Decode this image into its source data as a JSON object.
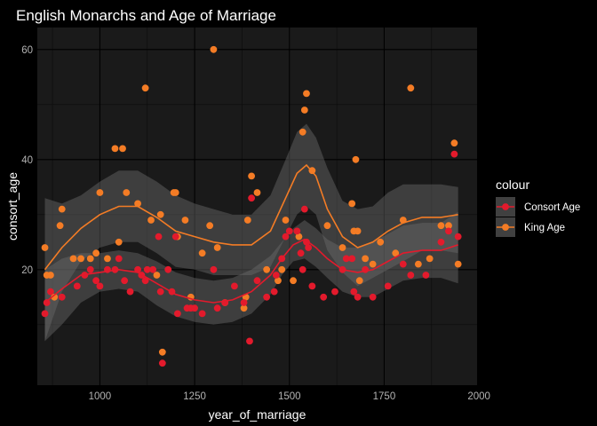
{
  "chart_data": {
    "type": "scatter",
    "title": "English Monarchs and Age of Marriage",
    "xlabel": "year_of_marriage",
    "ylabel": "consort_age",
    "xlim": [
      835,
      1995
    ],
    "ylim": [
      -1,
      64
    ],
    "x_ticks": [
      1000,
      1250,
      1500,
      1750,
      2000
    ],
    "y_ticks": [
      20,
      40,
      60
    ],
    "grid": true,
    "legend": {
      "title": "colour",
      "position": "right"
    },
    "series": [
      {
        "name": "Consort Age",
        "color": "#e31a2c",
        "points": [
          [
            855,
            12
          ],
          [
            860,
            14
          ],
          [
            870,
            16
          ],
          [
            900,
            15
          ],
          [
            940,
            17
          ],
          [
            960,
            19
          ],
          [
            975,
            20
          ],
          [
            990,
            18
          ],
          [
            1000,
            17
          ],
          [
            1020,
            20
          ],
          [
            1040,
            20
          ],
          [
            1050,
            22
          ],
          [
            1065,
            18
          ],
          [
            1080,
            16
          ],
          [
            1100,
            20
          ],
          [
            1110,
            19
          ],
          [
            1120,
            18
          ],
          [
            1125,
            20
          ],
          [
            1140,
            20
          ],
          [
            1155,
            26
          ],
          [
            1160,
            16
          ],
          [
            1165,
            3
          ],
          [
            1180,
            20
          ],
          [
            1190,
            16
          ],
          [
            1200,
            26
          ],
          [
            1205,
            12
          ],
          [
            1230,
            13
          ],
          [
            1240,
            13
          ],
          [
            1250,
            13
          ],
          [
            1270,
            12
          ],
          [
            1300,
            20
          ],
          [
            1310,
            13
          ],
          [
            1330,
            14
          ],
          [
            1355,
            17
          ],
          [
            1380,
            14
          ],
          [
            1395,
            7
          ],
          [
            1400,
            33
          ],
          [
            1415,
            18
          ],
          [
            1440,
            15
          ],
          [
            1460,
            16
          ],
          [
            1465,
            19
          ],
          [
            1480,
            22
          ],
          [
            1490,
            26
          ],
          [
            1500,
            27
          ],
          [
            1520,
            27
          ],
          [
            1530,
            23
          ],
          [
            1535,
            20
          ],
          [
            1540,
            31
          ],
          [
            1545,
            25
          ],
          [
            1550,
            24
          ],
          [
            1560,
            17
          ],
          [
            1590,
            15
          ],
          [
            1620,
            16
          ],
          [
            1640,
            20
          ],
          [
            1650,
            22
          ],
          [
            1665,
            22
          ],
          [
            1670,
            16
          ],
          [
            1680,
            15
          ],
          [
            1700,
            20
          ],
          [
            1720,
            15
          ],
          [
            1760,
            17
          ],
          [
            1800,
            21
          ],
          [
            1820,
            19
          ],
          [
            1860,
            19
          ],
          [
            1900,
            25
          ],
          [
            1920,
            27
          ],
          [
            1935,
            41
          ],
          [
            1945,
            26
          ]
        ]
      },
      {
        "name": "King Age",
        "color": "#f47c25",
        "points": [
          [
            855,
            24
          ],
          [
            860,
            19
          ],
          [
            870,
            19
          ],
          [
            880,
            15
          ],
          [
            895,
            28
          ],
          [
            900,
            31
          ],
          [
            930,
            22
          ],
          [
            950,
            22
          ],
          [
            975,
            22
          ],
          [
            990,
            23
          ],
          [
            1000,
            34
          ],
          [
            1020,
            22
          ],
          [
            1040,
            42
          ],
          [
            1050,
            25
          ],
          [
            1060,
            42
          ],
          [
            1070,
            34
          ],
          [
            1100,
            32
          ],
          [
            1120,
            53
          ],
          [
            1135,
            29
          ],
          [
            1150,
            19
          ],
          [
            1160,
            30
          ],
          [
            1165,
            5
          ],
          [
            1195,
            34
          ],
          [
            1200,
            34
          ],
          [
            1205,
            26
          ],
          [
            1225,
            29
          ],
          [
            1240,
            15
          ],
          [
            1270,
            23
          ],
          [
            1290,
            28
          ],
          [
            1300,
            60
          ],
          [
            1310,
            24
          ],
          [
            1330,
            14
          ],
          [
            1380,
            13
          ],
          [
            1385,
            15
          ],
          [
            1390,
            29
          ],
          [
            1400,
            37
          ],
          [
            1415,
            34
          ],
          [
            1440,
            20
          ],
          [
            1470,
            18
          ],
          [
            1480,
            20
          ],
          [
            1490,
            29
          ],
          [
            1510,
            18
          ],
          [
            1525,
            26
          ],
          [
            1535,
            45
          ],
          [
            1540,
            49
          ],
          [
            1545,
            52
          ],
          [
            1560,
            38
          ],
          [
            1600,
            28
          ],
          [
            1640,
            24
          ],
          [
            1665,
            32
          ],
          [
            1670,
            27
          ],
          [
            1675,
            40
          ],
          [
            1680,
            27
          ],
          [
            1685,
            18
          ],
          [
            1700,
            22
          ],
          [
            1720,
            21
          ],
          [
            1740,
            25
          ],
          [
            1780,
            23
          ],
          [
            1800,
            29
          ],
          [
            1820,
            53
          ],
          [
            1840,
            21
          ],
          [
            1870,
            22
          ],
          [
            1900,
            28
          ],
          [
            1920,
            28
          ],
          [
            1935,
            43
          ],
          [
            1945,
            21
          ]
        ]
      }
    ],
    "smooth": [
      {
        "name": "Consort Age",
        "color": "#e31a2c",
        "fit": [
          [
            855,
            14
          ],
          [
            900,
            16.5
          ],
          [
            950,
            19
          ],
          [
            1000,
            19.5
          ],
          [
            1050,
            20
          ],
          [
            1100,
            19.5
          ],
          [
            1150,
            17.5
          ],
          [
            1200,
            15.5
          ],
          [
            1250,
            14.5
          ],
          [
            1300,
            14
          ],
          [
            1350,
            14.5
          ],
          [
            1400,
            16
          ],
          [
            1450,
            19
          ],
          [
            1480,
            22
          ],
          [
            1510,
            24.5
          ],
          [
            1540,
            25.5
          ],
          [
            1570,
            24
          ],
          [
            1600,
            22
          ],
          [
            1640,
            20
          ],
          [
            1680,
            19.5
          ],
          [
            1720,
            20
          ],
          [
            1760,
            21.5
          ],
          [
            1800,
            23
          ],
          [
            1850,
            23.5
          ],
          [
            1900,
            23.5
          ],
          [
            1945,
            24.5
          ]
        ],
        "upper": [
          [
            855,
            20
          ],
          [
            900,
            22
          ],
          [
            950,
            23
          ],
          [
            1000,
            23
          ],
          [
            1050,
            23.5
          ],
          [
            1100,
            23
          ],
          [
            1150,
            21.5
          ],
          [
            1200,
            19.5
          ],
          [
            1250,
            18.5
          ],
          [
            1300,
            18
          ],
          [
            1350,
            18.5
          ],
          [
            1400,
            20
          ],
          [
            1450,
            22.5
          ],
          [
            1480,
            25
          ],
          [
            1510,
            27.5
          ],
          [
            1540,
            29
          ],
          [
            1570,
            27.5
          ],
          [
            1600,
            25.5
          ],
          [
            1640,
            24
          ],
          [
            1680,
            24
          ],
          [
            1720,
            25
          ],
          [
            1760,
            26.5
          ],
          [
            1800,
            28
          ],
          [
            1850,
            28.5
          ],
          [
            1900,
            28.5
          ],
          [
            1945,
            30.5
          ]
        ],
        "lower": [
          [
            855,
            7
          ],
          [
            900,
            10
          ],
          [
            950,
            14
          ],
          [
            1000,
            16
          ],
          [
            1050,
            16.5
          ],
          [
            1100,
            16
          ],
          [
            1150,
            13.5
          ],
          [
            1200,
            11.5
          ],
          [
            1250,
            10.5
          ],
          [
            1300,
            10
          ],
          [
            1350,
            10.5
          ],
          [
            1400,
            12
          ],
          [
            1450,
            15.5
          ],
          [
            1480,
            19
          ],
          [
            1510,
            21.5
          ],
          [
            1540,
            22
          ],
          [
            1570,
            20.5
          ],
          [
            1600,
            18.5
          ],
          [
            1640,
            16
          ],
          [
            1680,
            15
          ],
          [
            1720,
            15
          ],
          [
            1760,
            16.5
          ],
          [
            1800,
            18
          ],
          [
            1850,
            18.5
          ],
          [
            1900,
            18.5
          ],
          [
            1945,
            17.5
          ]
        ]
      },
      {
        "name": "King Age",
        "color": "#f47c25",
        "fit": [
          [
            855,
            20
          ],
          [
            900,
            24
          ],
          [
            950,
            27.5
          ],
          [
            1000,
            30
          ],
          [
            1050,
            31.5
          ],
          [
            1100,
            31.5
          ],
          [
            1150,
            29.5
          ],
          [
            1200,
            27
          ],
          [
            1250,
            26
          ],
          [
            1300,
            25
          ],
          [
            1350,
            24.5
          ],
          [
            1400,
            24.5
          ],
          [
            1450,
            27
          ],
          [
            1490,
            33
          ],
          [
            1520,
            37.5
          ],
          [
            1545,
            39
          ],
          [
            1570,
            37
          ],
          [
            1600,
            31
          ],
          [
            1640,
            26
          ],
          [
            1680,
            24
          ],
          [
            1720,
            25
          ],
          [
            1760,
            27
          ],
          [
            1800,
            28.5
          ],
          [
            1850,
            29.5
          ],
          [
            1900,
            29.5
          ],
          [
            1945,
            30
          ]
        ],
        "upper": [
          [
            855,
            33
          ],
          [
            900,
            32
          ],
          [
            950,
            33.5
          ],
          [
            1000,
            36
          ],
          [
            1050,
            38
          ],
          [
            1100,
            38
          ],
          [
            1150,
            36
          ],
          [
            1200,
            33.5
          ],
          [
            1250,
            32
          ],
          [
            1300,
            31
          ],
          [
            1350,
            30
          ],
          [
            1400,
            30
          ],
          [
            1450,
            33.5
          ],
          [
            1490,
            40
          ],
          [
            1520,
            45
          ],
          [
            1545,
            46.5
          ],
          [
            1570,
            44
          ],
          [
            1600,
            38.5
          ],
          [
            1640,
            32.5
          ],
          [
            1680,
            31
          ],
          [
            1720,
            31.5
          ],
          [
            1760,
            34
          ],
          [
            1800,
            35.5
          ],
          [
            1850,
            35.5
          ],
          [
            1900,
            35.5
          ],
          [
            1945,
            35
          ]
        ],
        "lower": [
          [
            855,
            7
          ],
          [
            900,
            16
          ],
          [
            950,
            21.5
          ],
          [
            1000,
            24
          ],
          [
            1050,
            25
          ],
          [
            1100,
            25
          ],
          [
            1150,
            23
          ],
          [
            1200,
            20.5
          ],
          [
            1250,
            20
          ],
          [
            1300,
            19
          ],
          [
            1350,
            19
          ],
          [
            1400,
            19
          ],
          [
            1450,
            20.5
          ],
          [
            1490,
            26
          ],
          [
            1520,
            30
          ],
          [
            1545,
            31.5
          ],
          [
            1570,
            30
          ],
          [
            1600,
            23.5
          ],
          [
            1640,
            19.5
          ],
          [
            1680,
            17
          ],
          [
            1720,
            18.5
          ],
          [
            1760,
            20
          ],
          [
            1800,
            21.5
          ],
          [
            1850,
            23.5
          ],
          [
            1900,
            23.5
          ],
          [
            1945,
            23
          ]
        ]
      }
    ]
  }
}
